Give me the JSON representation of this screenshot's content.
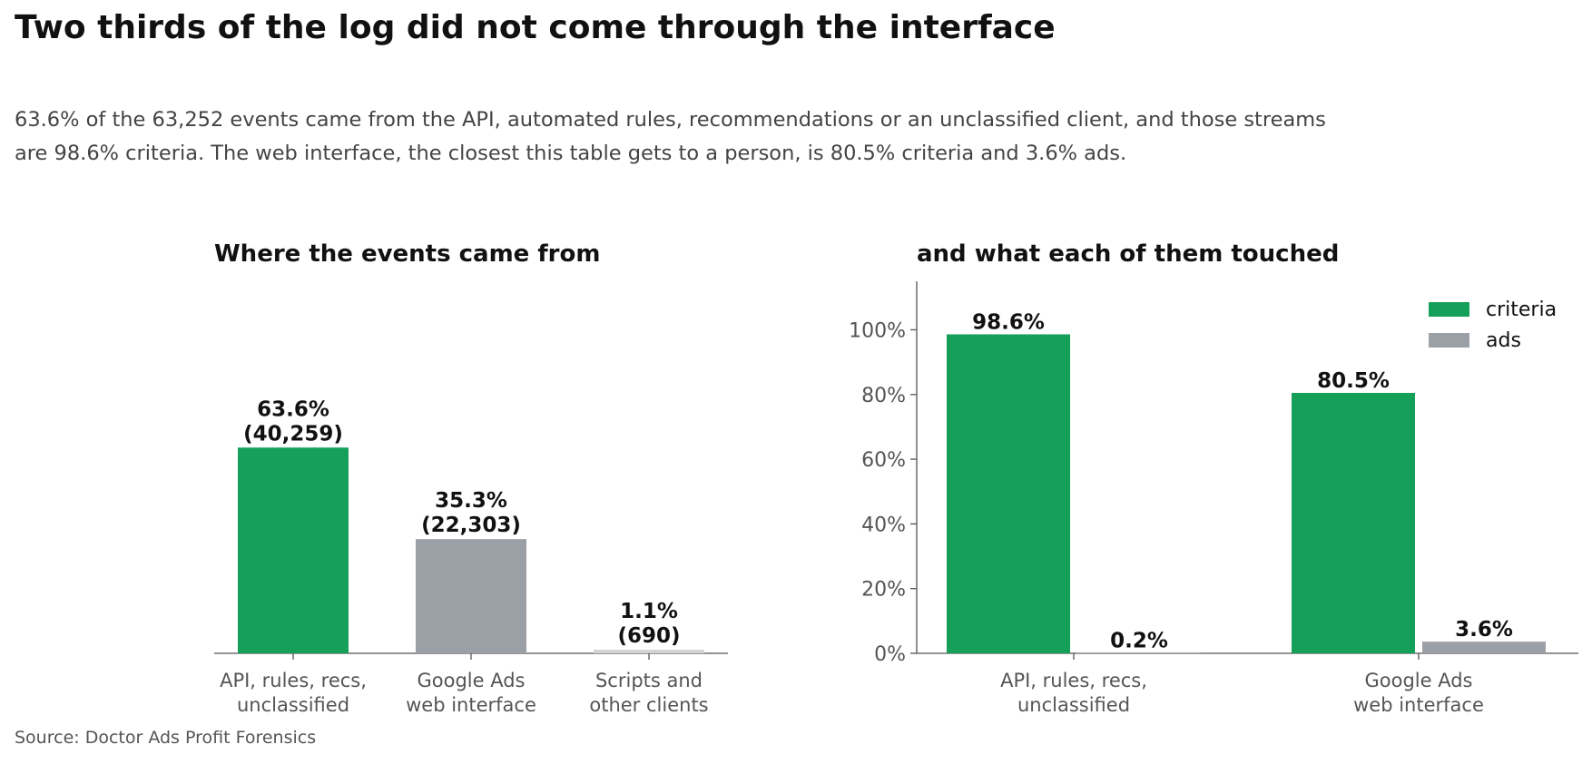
{
  "title": "Two thirds of the log did not come through the interface",
  "subtitle": "63.6% of the 63,252 events came from the API, automated rules, recommendations or an unclassified client, and those streams are 98.6% criteria. The web interface, the closest this table gets to a person, is 80.5% criteria and 3.6% ads.",
  "source": "Source: Doctor Ads Profit Forensics",
  "colors": {
    "green": "#15a05a",
    "gray": "#9b9fa6",
    "light_gray": "#d3d3d3",
    "text": "#111111",
    "axis": "#555555"
  },
  "chart_data": [
    {
      "type": "bar",
      "title": "Where the events came from",
      "categories": [
        "API, rules, recs,\nunclassified",
        "Google Ads\nweb interface",
        "Scripts and\nother clients"
      ],
      "values": [
        63.6,
        35.3,
        1.1
      ],
      "counts": [
        40259,
        22303,
        690
      ],
      "value_labels": [
        "63.6%",
        "35.3%",
        "1.1%"
      ],
      "count_labels": [
        "(40,259)",
        "(22,303)",
        "(690)"
      ],
      "bar_colors": [
        "#15a05a",
        "#9b9fa6",
        "#d3d3d3"
      ],
      "ylim": [
        0,
        115
      ],
      "y_axis_visible": false
    },
    {
      "type": "bar",
      "title": "and what each of them touched",
      "categories": [
        "API, rules, recs,\nunclassified",
        "Google Ads\nweb interface"
      ],
      "series": [
        {
          "name": "criteria",
          "values": [
            98.6,
            80.5
          ],
          "labels": [
            "98.6%",
            "80.5%"
          ],
          "color": "#15a05a"
        },
        {
          "name": "ads",
          "values": [
            0.2,
            3.6
          ],
          "labels": [
            "0.2%",
            "3.6%"
          ],
          "color": "#9b9fa6"
        }
      ],
      "yticks": [
        0,
        20,
        40,
        60,
        80,
        100
      ],
      "ytick_labels": [
        "0%",
        "20%",
        "40%",
        "60%",
        "80%",
        "100%"
      ],
      "ylim": [
        0,
        115
      ],
      "legend": "top-right"
    }
  ]
}
